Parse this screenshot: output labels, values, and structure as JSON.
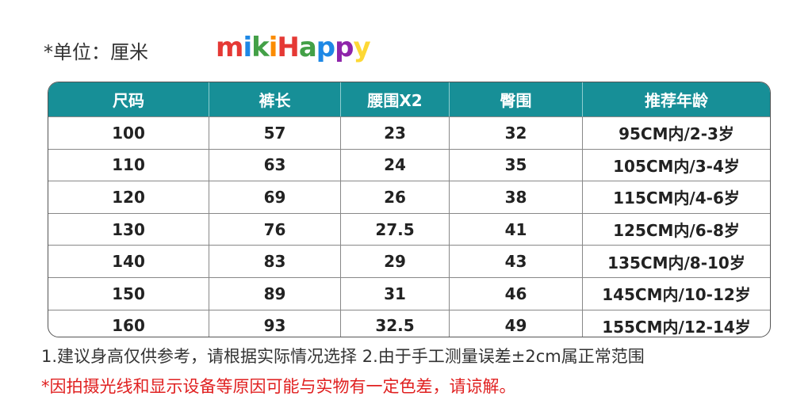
{
  "header": {
    "unit": "*单位：厘米",
    "brand": "mikiHappy"
  },
  "table": {
    "columns": [
      "尺码",
      "裤长",
      "腰围X2",
      "臀围",
      "推荐年龄"
    ],
    "rows": [
      [
        "100",
        "57",
        "23",
        "32",
        "95CM内/2-3岁"
      ],
      [
        "110",
        "63",
        "24",
        "35",
        "105CM内/3-4岁"
      ],
      [
        "120",
        "69",
        "26",
        "38",
        "115CM内/4-6岁"
      ],
      [
        "130",
        "76",
        "27.5",
        "41",
        "125CM内/6-8岁"
      ],
      [
        "140",
        "83",
        "29",
        "43",
        "135CM内/8-10岁"
      ],
      [
        "150",
        "89",
        "31",
        "46",
        "145CM内/10-12岁"
      ],
      [
        "160",
        "93",
        "32.5",
        "49",
        "155CM内/12-14岁"
      ]
    ]
  },
  "notes": [
    "1.建议身高仅供参考，请根据实际情况选择   2.由于手工测量误差±2cm属正常范围",
    "*因拍摄光线和显示设备等原因可能与实物有一定色差，请谅解。"
  ]
}
